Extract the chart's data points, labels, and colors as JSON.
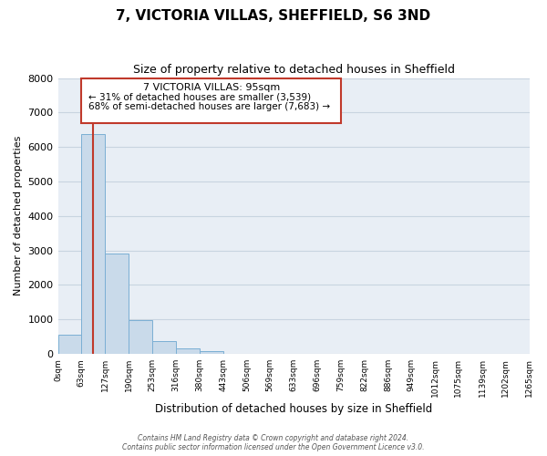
{
  "title": "7, VICTORIA VILLAS, SHEFFIELD, S6 3ND",
  "subtitle": "Size of property relative to detached houses in Sheffield",
  "xlabel": "Distribution of detached houses by size in Sheffield",
  "ylabel": "Number of detached properties",
  "bar_color": "#c9daea",
  "bar_edge_color": "#7bafd4",
  "grid_color": "#c8d4e0",
  "background_color": "#e8eef5",
  "bin_edges": [
    0,
    63,
    127,
    190,
    253,
    316,
    380,
    443,
    506,
    569,
    633,
    696,
    759,
    822,
    886,
    949,
    1012,
    1075,
    1139,
    1202,
    1265
  ],
  "bin_labels": [
    "0sqm",
    "63sqm",
    "127sqm",
    "190sqm",
    "253sqm",
    "316sqm",
    "380sqm",
    "443sqm",
    "506sqm",
    "569sqm",
    "633sqm",
    "696sqm",
    "759sqm",
    "822sqm",
    "886sqm",
    "949sqm",
    "1012sqm",
    "1075sqm",
    "1139sqm",
    "1202sqm",
    "1265sqm"
  ],
  "bar_heights": [
    550,
    6380,
    2920,
    980,
    380,
    160,
    80,
    0,
    0,
    0,
    0,
    0,
    0,
    0,
    0,
    0,
    0,
    0,
    0,
    0
  ],
  "ylim": [
    0,
    8000
  ],
  "yticks": [
    0,
    1000,
    2000,
    3000,
    4000,
    5000,
    6000,
    7000,
    8000
  ],
  "property_line_x": 95,
  "red_line_color": "#c0392b",
  "annotation_title": "7 VICTORIA VILLAS: 95sqm",
  "annotation_line1": "← 31% of detached houses are smaller (3,539)",
  "annotation_line2": "68% of semi-detached houses are larger (7,683) →",
  "annotation_box_color": "#ffffff",
  "annotation_box_edge": "#c0392b",
  "footer_line1": "Contains HM Land Registry data © Crown copyright and database right 2024.",
  "footer_line2": "Contains public sector information licensed under the Open Government Licence v3.0."
}
